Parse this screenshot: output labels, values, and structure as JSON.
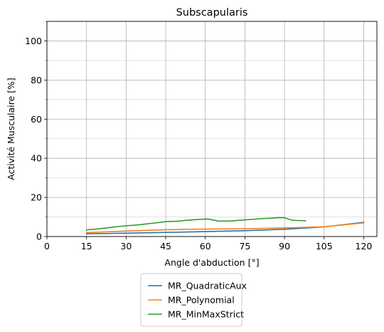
{
  "chart_data": {
    "type": "line",
    "title": "Subscapularis",
    "xlabel": "Angle d'abduction [°]",
    "ylabel": "Activité Musculaire [%]",
    "xlim": [
      0,
      125
    ],
    "ylim": [
      0,
      110
    ],
    "xticks": [
      0,
      15,
      30,
      45,
      60,
      75,
      90,
      105,
      120
    ],
    "yticks": [
      0,
      20,
      40,
      60,
      80,
      100
    ],
    "y_minor_ticks": [
      10,
      30,
      50,
      70,
      90,
      110
    ],
    "grid": true,
    "legend_position": "below",
    "series": [
      {
        "name": "MR_QuadraticAux",
        "color": "#1f77b4",
        "x": [
          15,
          30,
          45,
          60,
          75,
          90,
          105,
          120
        ],
        "y": [
          1.4,
          1.7,
          2.1,
          2.5,
          3.0,
          3.7,
          4.9,
          7.3
        ]
      },
      {
        "name": "MR_Polynomial",
        "color": "#ff7f0e",
        "x": [
          15,
          30,
          45,
          60,
          75,
          90,
          105,
          120
        ],
        "y": [
          2.0,
          2.8,
          3.5,
          3.8,
          4.0,
          4.4,
          5.0,
          7.0
        ]
      },
      {
        "name": "MR_MinMaxStrict",
        "color": "#2ca02c",
        "x": [
          15,
          18,
          22,
          26,
          30,
          34,
          38,
          42,
          45,
          49,
          53,
          57,
          61,
          65,
          69,
          73,
          77,
          81,
          85,
          88,
          90,
          93,
          95,
          98
        ],
        "y": [
          3.4,
          3.7,
          4.3,
          5.0,
          5.5,
          5.9,
          6.5,
          7.1,
          7.6,
          7.8,
          8.3,
          8.7,
          9.0,
          7.9,
          7.9,
          8.3,
          8.7,
          9.1,
          9.4,
          9.7,
          9.6,
          8.3,
          8.2,
          8.1
        ]
      }
    ]
  }
}
